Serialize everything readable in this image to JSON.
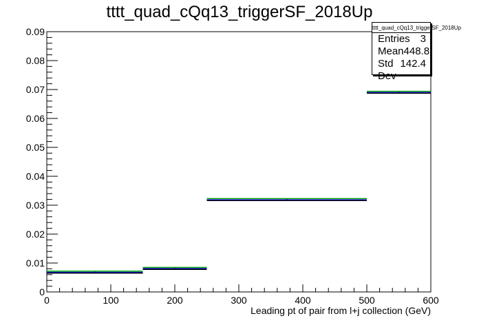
{
  "title": "tttt_quad_cQq13_triggerSF_2018Up",
  "stats": {
    "name": "tttt_quad_cQq13_triggerSF_2018Up",
    "rows": [
      {
        "label": "Entries",
        "value": "3"
      },
      {
        "label": "Mean",
        "value": "448.8"
      },
      {
        "label": "Std Dev",
        "value": "142.4"
      }
    ]
  },
  "chart_data": {
    "type": "histogram",
    "title": "tttt_quad_cQq13_triggerSF_2018Up",
    "xlabel": "Leading pt of pair from l+j collection (GeV)",
    "ylabel": "",
    "xlim": [
      0,
      600
    ],
    "ylim": [
      0,
      0.09
    ],
    "x_ticks": [
      0,
      100,
      200,
      300,
      400,
      500,
      600
    ],
    "y_ticks": [
      0,
      0.01,
      0.02,
      0.03,
      0.04,
      0.05,
      0.06,
      0.07,
      0.08,
      0.09
    ],
    "x_tick_labels": [
      "0",
      "100",
      "200",
      "300",
      "400",
      "500",
      "600"
    ],
    "y_tick_labels": [
      "0",
      "0.01",
      "0.02",
      "0.03",
      "0.04",
      "0.05",
      "0.06",
      "0.07",
      "0.08",
      "0.09"
    ],
    "bins": [
      {
        "low": 0,
        "high": 150,
        "value": 0.0068
      },
      {
        "low": 150,
        "high": 250,
        "value": 0.0081
      },
      {
        "low": 250,
        "high": 500,
        "value": 0.0319
      },
      {
        "low": 500,
        "high": 600,
        "value": 0.069
      }
    ],
    "series_colors": [
      "#00aa00",
      "#0000cc",
      "#000000"
    ],
    "series_offsets": [
      0.0004,
      0.0,
      -0.0003
    ],
    "grid": false,
    "legend": "top-right stats box"
  }
}
